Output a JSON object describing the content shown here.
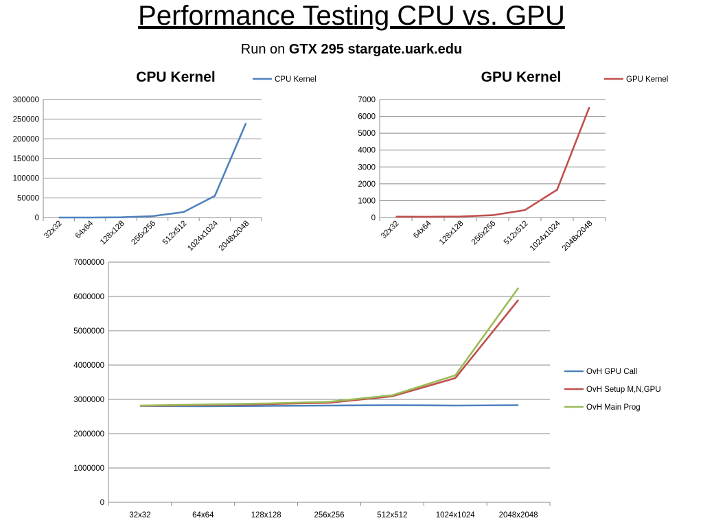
{
  "slide": {
    "title": "Performance Testing CPU vs. GPU",
    "subtitle_prefix": "Run on ",
    "subtitle_bold": "GTX 295 stargate.uark.edu"
  },
  "colors": {
    "blue": "#4f81bd",
    "red": "#c0504d",
    "green": "#9bbb59",
    "grid": "#888888",
    "axis": "#888888"
  },
  "chart_data": [
    {
      "type": "line",
      "title": "CPU Kernel",
      "xlabel": "",
      "ylabel": "",
      "categories": [
        "32x32",
        "64x64",
        "128x128",
        "256x256",
        "512x512",
        "1024x1024",
        "2048x2048"
      ],
      "series": [
        {
          "name": "CPU Kernel",
          "values": [
            0,
            50,
            500,
            3500,
            14000,
            55000,
            240000
          ]
        }
      ],
      "ylim": [
        0,
        300000
      ],
      "yticks": [
        0,
        50000,
        100000,
        150000,
        200000,
        250000,
        300000
      ],
      "grid": true,
      "legend": "right of title",
      "rotate_labels": true
    },
    {
      "type": "line",
      "title": "GPU Kernel",
      "xlabel": "",
      "ylabel": "",
      "categories": [
        "32x32",
        "64x64",
        "128x128",
        "256x256",
        "512x512",
        "1024x1024",
        "2048x2048"
      ],
      "series": [
        {
          "name": "GPU Kernel",
          "values": [
            50,
            45,
            60,
            140,
            440,
            1650,
            6550
          ]
        }
      ],
      "ylim": [
        0,
        7000
      ],
      "yticks": [
        0,
        1000,
        2000,
        3000,
        4000,
        5000,
        6000,
        7000
      ],
      "grid": true,
      "legend": "right of title",
      "rotate_labels": true
    },
    {
      "type": "line",
      "title": "",
      "xlabel": "",
      "ylabel": "",
      "categories": [
        "32x32",
        "64x64",
        "128x128",
        "256x256",
        "512x512",
        "1024x1024",
        "2048x2048"
      ],
      "series": [
        {
          "name": "OvH GPU Call",
          "values": [
            2810000,
            2800000,
            2810000,
            2820000,
            2830000,
            2820000,
            2830000
          ]
        },
        {
          "name": "OvH Setup M,N,GPU",
          "values": [
            2815000,
            2830000,
            2860000,
            2900000,
            3090000,
            3620000,
            5900000
          ]
        },
        {
          "name": "OvH Main Prog",
          "values": [
            2820000,
            2850000,
            2880000,
            2930000,
            3120000,
            3700000,
            6250000
          ]
        }
      ],
      "ylim": [
        0,
        7000000
      ],
      "yticks": [
        0,
        1000000,
        2000000,
        3000000,
        4000000,
        5000000,
        6000000,
        7000000
      ],
      "grid": true,
      "legend": "right",
      "rotate_labels": false
    }
  ]
}
